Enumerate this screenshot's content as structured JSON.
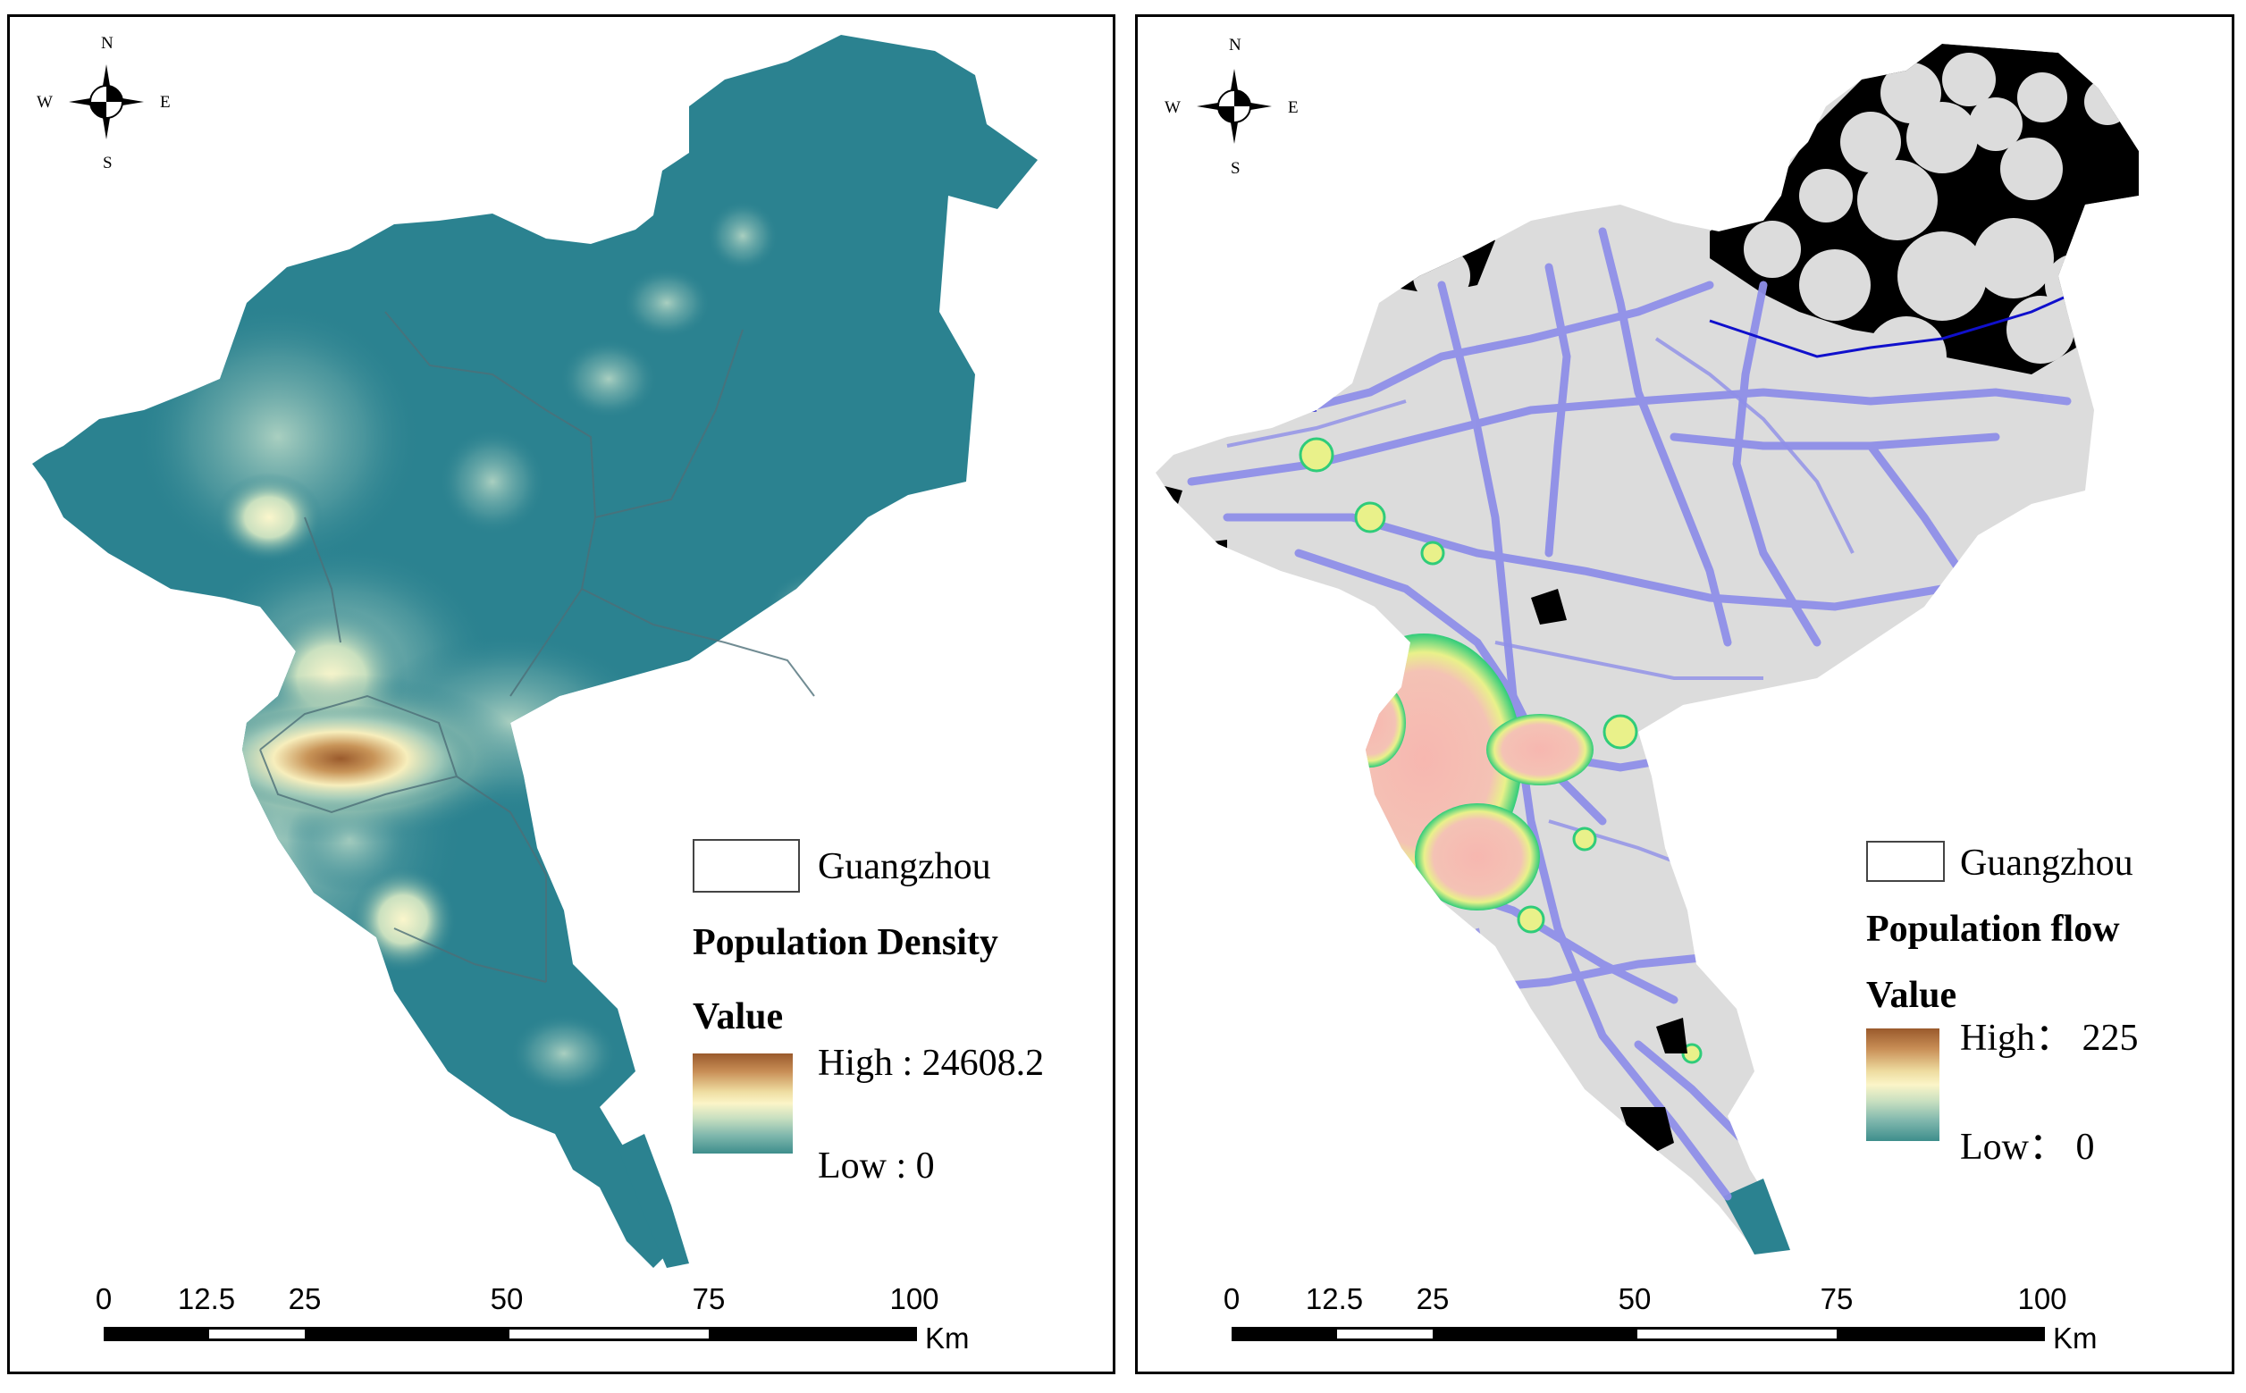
{
  "compass": {
    "north": "N",
    "south": "S",
    "west": "W",
    "east": "E"
  },
  "left_panel": {
    "legend": {
      "boundary_label": "Guangzhou",
      "title": "Population Density",
      "value_heading": "Value",
      "high": "High : 24608.2",
      "low": "Low : 0"
    },
    "scale": {
      "ticks": [
        "0",
        "12.5",
        "25",
        "50",
        "75",
        "100"
      ],
      "unit": "Km"
    }
  },
  "right_panel": {
    "legend": {
      "boundary_label": "Guangzhou",
      "title": "Population flow",
      "value_heading": "Value",
      "high": "High： 225",
      "low": "Low： 0"
    },
    "scale": {
      "ticks": [
        "0",
        "12.5",
        "25",
        "50",
        "75",
        "100"
      ],
      "unit": "Km"
    }
  },
  "colors": {
    "density_base": "#2b8290",
    "density_high": "#9a5a2c",
    "density_mid": "#fbf5c8",
    "flow_base": "#dcdcdc",
    "flow_roads": "#8f8fe8",
    "flow_hot": "#f7b7b0",
    "flow_mid": "#e9f18a",
    "flow_edge": "#2fcc7a",
    "flow_void": "#000000"
  }
}
